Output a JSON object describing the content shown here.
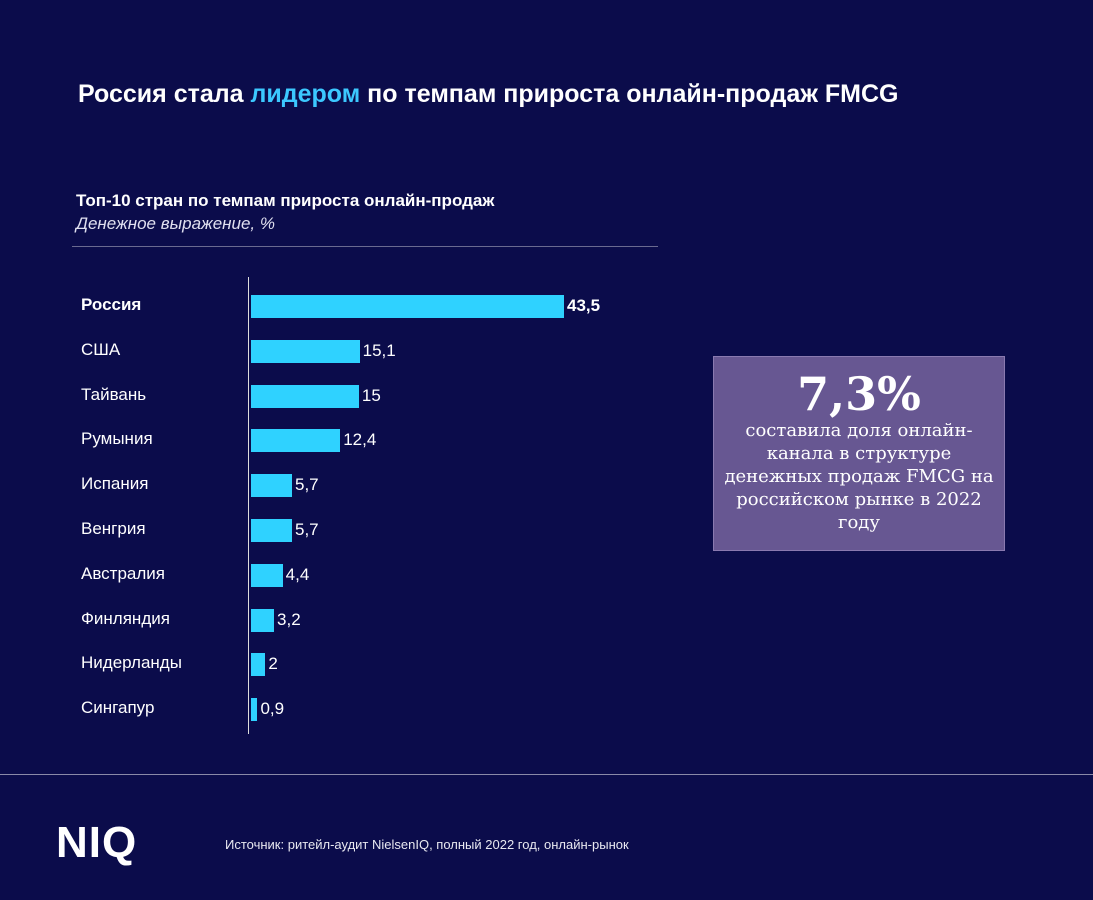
{
  "header": {
    "title_pre": "Россия стала ",
    "title_accent": "лидером",
    "title_post": " по темпам прироста онлайн-продаж FMCG"
  },
  "colors": {
    "background": "#0b0c4b",
    "bar": "#2fd2ff",
    "accent": "#3cc8ff",
    "callout": "#675792"
  },
  "chart_data": {
    "type": "bar",
    "orientation": "horizontal",
    "title": "Топ-10 стран по темпам прироста онлайн-продаж",
    "subtitle": "Денежное выражение, %",
    "categories": [
      "Россия",
      "США",
      "Тайвань",
      "Румыния",
      "Испания",
      "Венгрия",
      "Австралия",
      "Финляндия",
      "Нидерланды",
      "Сингапур"
    ],
    "values": [
      43.5,
      15.1,
      15,
      12.4,
      5.7,
      5.7,
      4.4,
      3.2,
      2,
      0.9
    ],
    "labels": [
      "43,5",
      "15,1",
      "15",
      "12,4",
      "5,7",
      "5,7",
      "4,4",
      "3,2",
      "2",
      "0,9"
    ],
    "highlight": "Россия",
    "grid": false,
    "xlim": [
      0,
      43.5
    ]
  },
  "callout": {
    "value": "7,3%",
    "text": "составила доля онлайн-канала в структуре денежных продаж FMCG на российском рынке в 2022 году"
  },
  "footer": {
    "logo": "NIQ",
    "source": "Источник: ритейл-аудит NielsenIQ, полный 2022 год, онлайн-рынок"
  }
}
